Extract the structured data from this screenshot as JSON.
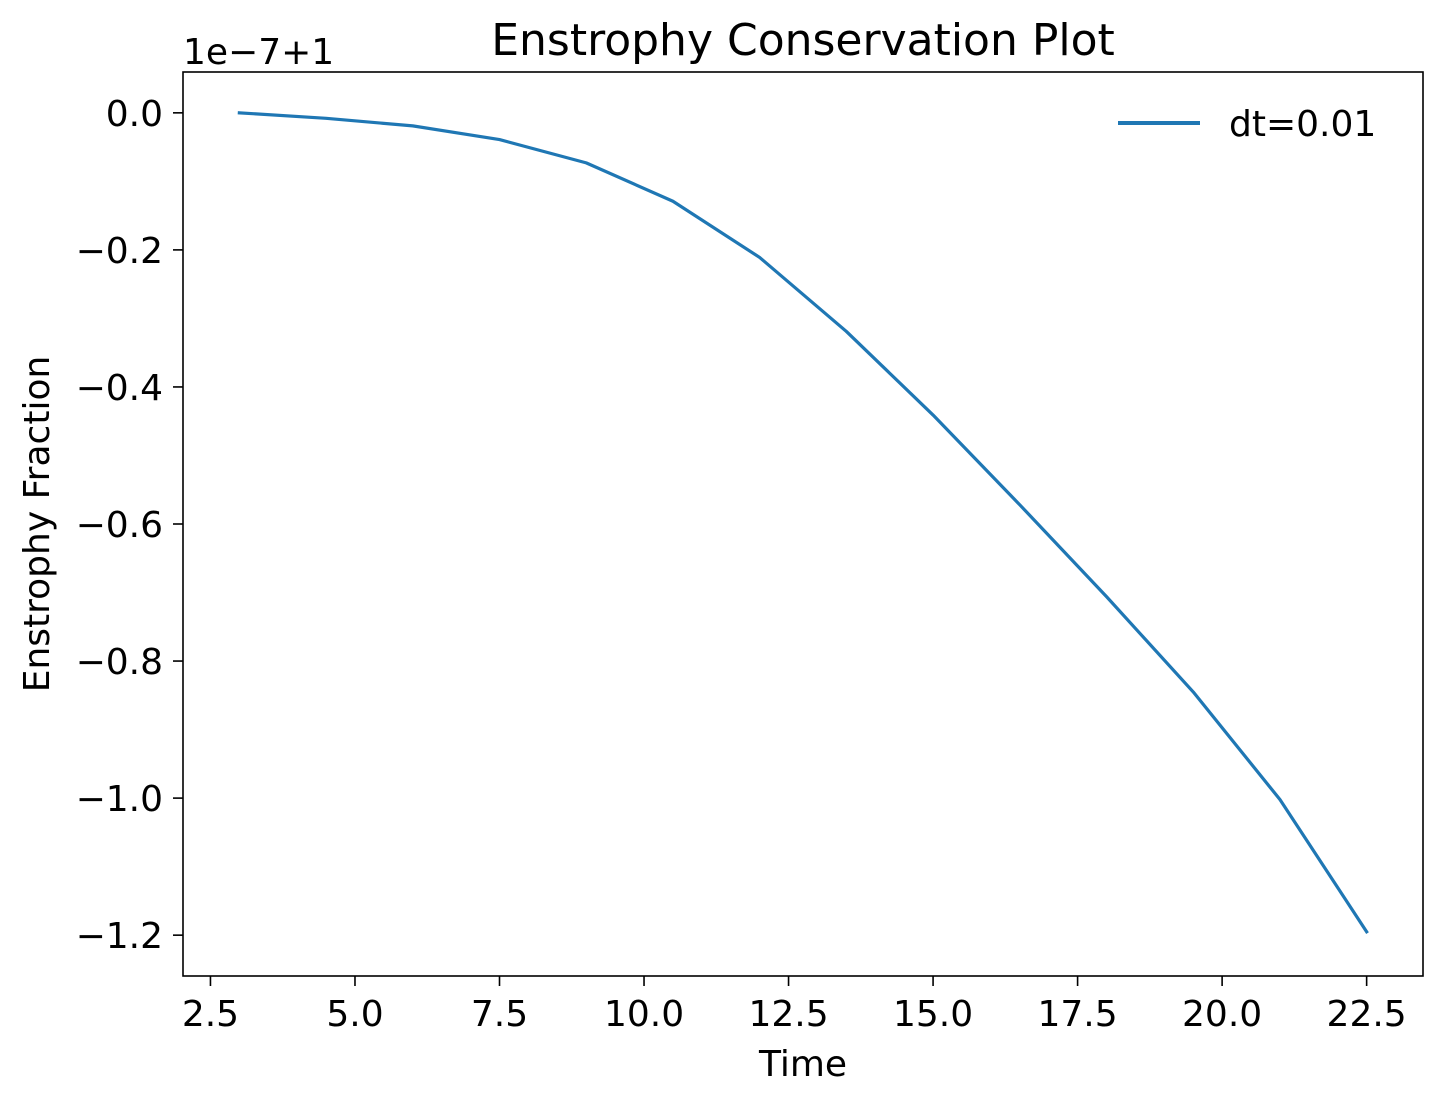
{
  "chart_data": {
    "type": "line",
    "title": "Enstrophy Conservation Plot",
    "xlabel": "Time",
    "ylabel": "Enstrophy Fraction",
    "offset_label": "1e−7+1",
    "xlim": [
      2.025,
      23.475
    ],
    "ylim": [
      -1.2596,
      0.0596
    ],
    "xticks": [
      2.5,
      5.0,
      7.5,
      10.0,
      12.5,
      15.0,
      17.5,
      20.0,
      22.5
    ],
    "xtick_labels": [
      "2.5",
      "5.0",
      "7.5",
      "10.0",
      "12.5",
      "15.0",
      "17.5",
      "20.0",
      "22.5"
    ],
    "yticks": [
      0.0,
      -0.2,
      -0.4,
      -0.6,
      -0.8,
      -1.0,
      -1.2
    ],
    "ytick_labels": [
      "0.0",
      "−0.2",
      "−0.4",
      "−0.6",
      "−0.8",
      "−1.0",
      "−1.2"
    ],
    "grid": false,
    "legend_position": "top-right",
    "legend_frame": false,
    "series": [
      {
        "name": "dt=0.01",
        "color": "#1f77b4",
        "x": [
          3.0,
          4.5,
          6.0,
          7.5,
          9.0,
          10.5,
          12.0,
          13.5,
          15.0,
          16.5,
          18.0,
          19.5,
          21.0,
          22.5
        ],
        "y": [
          0.0,
          -0.008,
          -0.019,
          -0.039,
          -0.073,
          -0.129,
          -0.211,
          -0.319,
          -0.441,
          -0.572,
          -0.706,
          -0.845,
          -1.002,
          -1.195
        ]
      }
    ]
  }
}
